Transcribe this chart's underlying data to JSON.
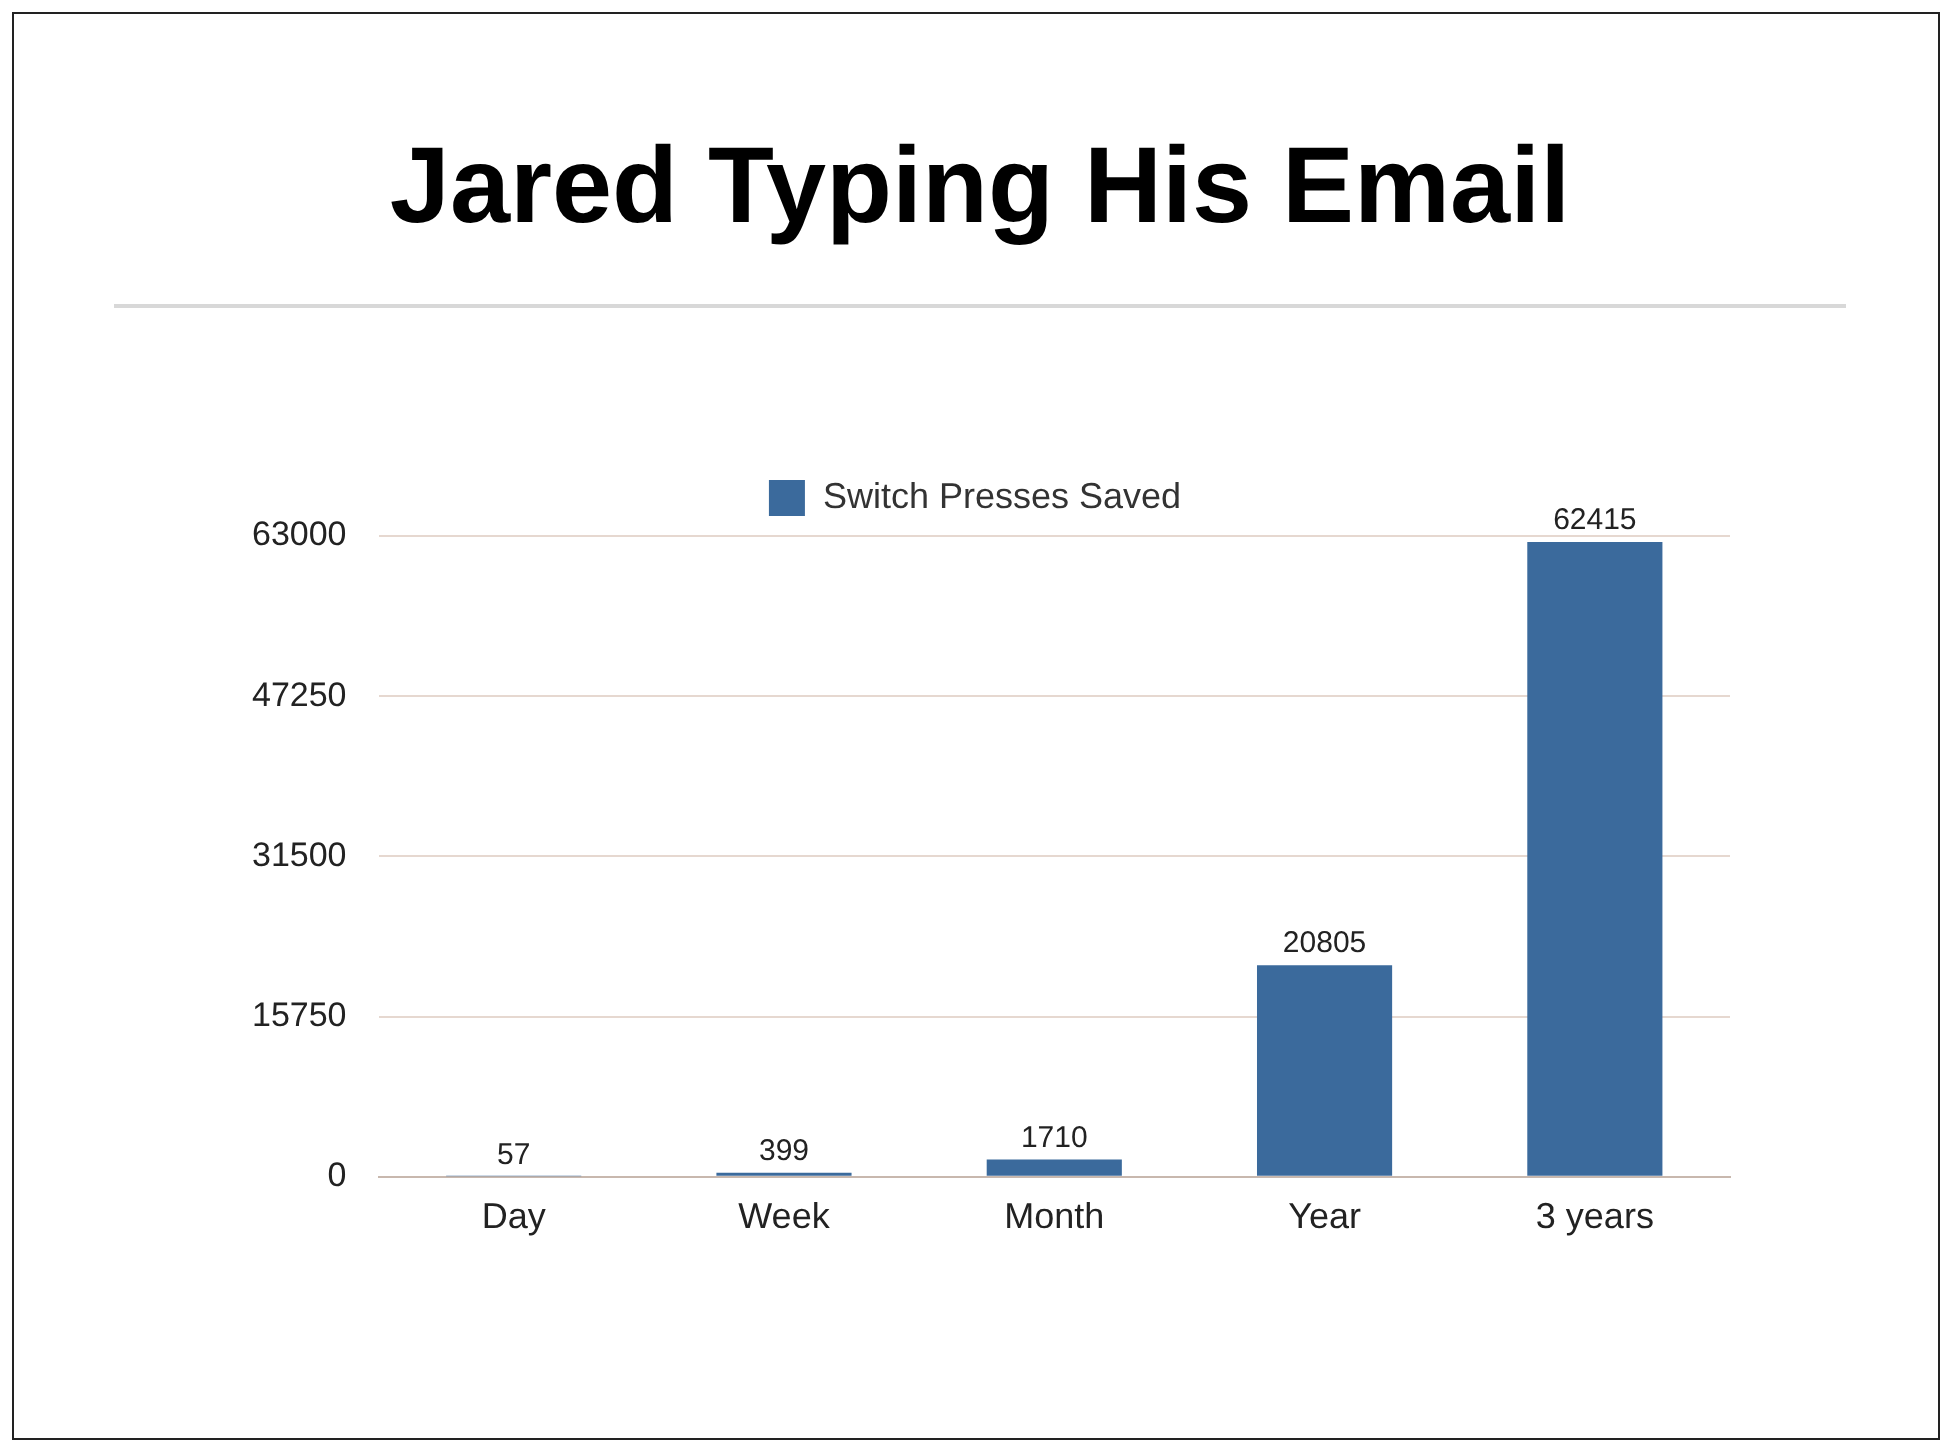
{
  "chart_data": {
    "type": "bar",
    "title": "Jared Typing His Email",
    "categories": [
      "Day",
      "Week",
      "Month",
      "Year",
      "3 years"
    ],
    "series": [
      {
        "name": "Switch Presses Saved",
        "color": "#3b6a9c",
        "values": [
          57,
          399,
          1710,
          20805,
          62415
        ]
      }
    ],
    "ylim": [
      0,
      63000
    ],
    "yticks": [
      0,
      15750,
      31500,
      47250,
      63000
    ],
    "grid": "y",
    "legend": "top",
    "data_labels": true
  }
}
